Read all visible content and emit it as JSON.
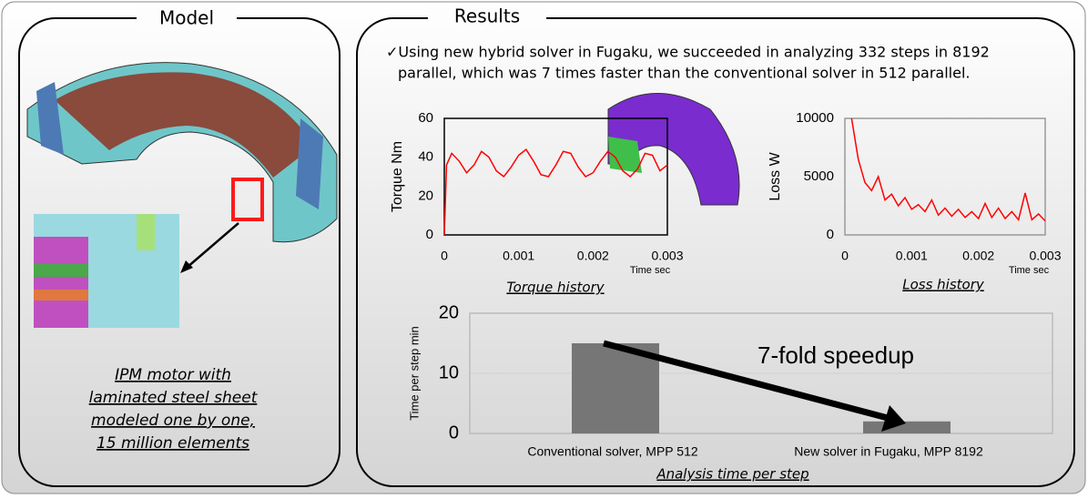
{
  "model": {
    "title": "Model",
    "caption": [
      "IPM motor with",
      "laminated steel sheet",
      "modeled one by one,",
      "15 million elements"
    ]
  },
  "results": {
    "title": "Results",
    "note": [
      "✓Using new hybrid solver in Fugaku, we succeeded in analyzing 332 steps in 8192",
      "parallel, which was 7 times faster than the conventional solver in 512 parallel."
    ]
  },
  "chart_data": [
    {
      "type": "line",
      "title": "Torque history",
      "y_label": "Torque  Nm",
      "x_label": "Time  sec",
      "x": [
        0,
        3e-05,
        0.0001,
        0.0002,
        0.0003,
        0.0004,
        0.0005,
        0.0006,
        0.0007,
        0.0008,
        0.0009,
        0.001,
        0.0011,
        0.0012,
        0.0013,
        0.0014,
        0.0015,
        0.0016,
        0.0017,
        0.0018,
        0.0019,
        0.002,
        0.0021,
        0.0022,
        0.0023,
        0.0024,
        0.0025,
        0.0026,
        0.0027,
        0.0028,
        0.0029,
        0.003
      ],
      "series": [
        {
          "color": "#ff0000",
          "values": [
            0,
            36,
            42,
            38,
            32,
            36,
            43,
            40,
            33,
            30,
            35,
            41,
            44,
            38,
            31,
            30,
            36,
            43,
            42,
            35,
            30,
            32,
            38,
            43,
            40,
            33,
            30,
            34,
            42,
            41,
            33,
            36
          ]
        }
      ],
      "xlim": [
        0,
        0.003
      ],
      "xticks": [
        0,
        0.001,
        0.002,
        0.003
      ],
      "ylim": [
        0,
        60
      ],
      "yticks": [
        0,
        20,
        40,
        60
      ]
    },
    {
      "type": "line",
      "title": "Loss history",
      "y_label": "Loss  W",
      "x_label": "Time  sec",
      "x": [
        0.0001,
        0.0002,
        0.0003,
        0.0004,
        0.0005,
        0.0006,
        0.0007,
        0.0008,
        0.0009,
        0.001,
        0.0011,
        0.0012,
        0.0013,
        0.0014,
        0.0015,
        0.0016,
        0.0017,
        0.0018,
        0.0019,
        0.002,
        0.0021,
        0.0022,
        0.0023,
        0.0024,
        0.0025,
        0.0026,
        0.0027,
        0.0028,
        0.0029,
        0.003
      ],
      "series": [
        {
          "color": "#ff0000",
          "values": [
            10000,
            6500,
            4500,
            3800,
            5000,
            3000,
            3500,
            2500,
            3200,
            2200,
            2600,
            2000,
            3000,
            1700,
            2300,
            1600,
            2200,
            1500,
            2000,
            1400,
            2700,
            1500,
            2300,
            1400,
            2000,
            1300,
            3600,
            1300,
            1800,
            1200
          ]
        }
      ],
      "xlim": [
        0,
        0.003
      ],
      "xticks": [
        0,
        0.001,
        0.002,
        0.003
      ],
      "ylim": [
        0,
        10000
      ],
      "yticks": [
        0,
        5000,
        10000
      ]
    },
    {
      "type": "bar",
      "title": "Analysis time per step",
      "y_label": "Time per step   min",
      "annotation": "7-fold speedup",
      "categories": [
        "Conventional solver, MPP 512",
        "New solver in Fugaku, MPP 8192"
      ],
      "values": [
        15,
        2
      ],
      "color": "#767676",
      "ylim": [
        0,
        20
      ],
      "yticks": [
        0,
        10,
        20
      ],
      "grid": true
    }
  ]
}
